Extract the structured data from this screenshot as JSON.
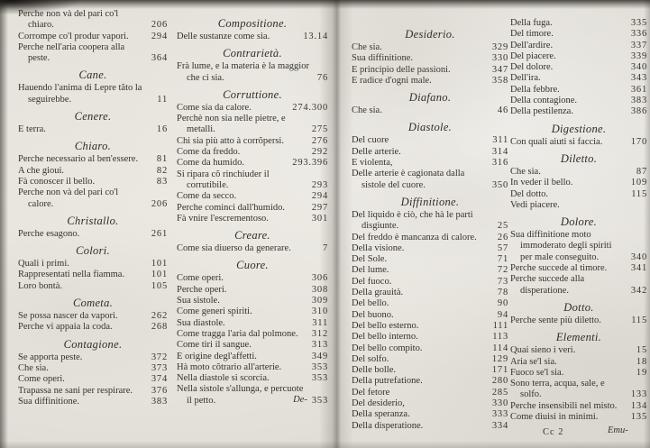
{
  "document": {
    "kind": "printed-book-index-spread",
    "language": "Italian",
    "colors": {
      "paper": "#e5e2db",
      "ink": "#35312a",
      "scan_edge": "#26231e"
    },
    "pages": [
      {
        "side": "left",
        "catchword": "De-",
        "columns": [
          {
            "blocks": [
              {
                "heading": null,
                "entries": [
                  {
                    "label": "Perche non và del pari co'l chiaro.",
                    "page": "206"
                  },
                  {
                    "label": "Corrompe co'l produr vapori.",
                    "page": "294"
                  },
                  {
                    "label": "Perche nell'aria coopera alla peste.",
                    "page": "364"
                  }
                ]
              },
              {
                "heading": "Cane.",
                "entries": [
                  {
                    "label": "Hauendo l'anima di Lepre tãto la seguirebbe.",
                    "page": "11"
                  }
                ]
              },
              {
                "heading": "Cenere.",
                "entries": [
                  {
                    "label": "E terra.",
                    "page": "16"
                  }
                ]
              },
              {
                "heading": "Chiaro.",
                "entries": [
                  {
                    "label": "Perche necessario al ben'essere.",
                    "page": "81"
                  },
                  {
                    "label": "A che gioui.",
                    "page": "82"
                  },
                  {
                    "label": "Fà conoscer il bello.",
                    "page": "83"
                  },
                  {
                    "label": "Perche non và del pari co'l calore.",
                    "page": "206"
                  }
                ]
              },
              {
                "heading": "Christallo.",
                "entries": [
                  {
                    "label": "Perche esagono.",
                    "page": "261"
                  }
                ]
              },
              {
                "heading": "Colori.",
                "entries": [
                  {
                    "label": "Quali i primi.",
                    "page": "101"
                  },
                  {
                    "label": "Rappresentati nella fiamma.",
                    "page": "101"
                  },
                  {
                    "label": "Loro bontà.",
                    "page": "105"
                  }
                ]
              },
              {
                "heading": "Cometa.",
                "entries": [
                  {
                    "label": "Se possa nascer da vapori.",
                    "page": "262"
                  },
                  {
                    "label": "Perche vi appaia la coda.",
                    "page": "268"
                  }
                ]
              },
              {
                "heading": "Contagione.",
                "entries": [
                  {
                    "label": "Se apporta peste.",
                    "page": "372"
                  },
                  {
                    "label": "Che sia.",
                    "page": "373"
                  },
                  {
                    "label": "Come operi.",
                    "page": "374"
                  },
                  {
                    "label": "Trapassa ne sani per respirare.",
                    "page": "376"
                  },
                  {
                    "label": "Sua diffinitione.",
                    "page": "383"
                  }
                ]
              }
            ]
          },
          {
            "blocks": [
              {
                "heading": "Compositione.",
                "entries": [
                  {
                    "label": "Delle sustanze come sia.",
                    "page": "13.14"
                  }
                ]
              },
              {
                "heading": "Contrarietà.",
                "entries": [
                  {
                    "label": "Frà lume, e la materia è la maggior che ci sia.",
                    "page": "76"
                  }
                ]
              },
              {
                "heading": "Corruttione.",
                "entries": [
                  {
                    "label": "Come sia da calore.",
                    "page": "274.300"
                  },
                  {
                    "label": "Perchè non sia nelle pietre, e metalli.",
                    "page": "275"
                  },
                  {
                    "label": "Chi sia più atto à corrõpersi.",
                    "page": "276"
                  },
                  {
                    "label": "Come da freddo.",
                    "page": "292"
                  },
                  {
                    "label": "Come da humido.",
                    "page": "293.396"
                  },
                  {
                    "label": "Si ripara cõ rinchiuder il corrutibile.",
                    "page": "293"
                  },
                  {
                    "label": "Come da secco.",
                    "page": "294"
                  },
                  {
                    "label": "Perche cominci dall'humido.",
                    "page": "297"
                  },
                  {
                    "label": "Fà vnire l'escrementoso.",
                    "page": "301"
                  }
                ]
              },
              {
                "heading": "Creare.",
                "entries": [
                  {
                    "label": "Come sia diuerso da generare.",
                    "page": "7"
                  }
                ]
              },
              {
                "heading": "Cuore.",
                "entries": [
                  {
                    "label": "Come operi.",
                    "page": "306"
                  },
                  {
                    "label": "Perche operi.",
                    "page": "308"
                  },
                  {
                    "label": "Sua sistole.",
                    "page": "309"
                  },
                  {
                    "label": "Come generi spiriti.",
                    "page": "310"
                  },
                  {
                    "label": "Sua diastole.",
                    "page": "311"
                  },
                  {
                    "label": "Come tragga l'aria dal polmone.",
                    "page": "312"
                  },
                  {
                    "label": "Come tiri il sangue.",
                    "page": "313"
                  },
                  {
                    "label": "E origine degl'affetti.",
                    "page": "349"
                  },
                  {
                    "label": "Hà moto cõtrario all'arterie.",
                    "page": "353"
                  },
                  {
                    "label": "Nella diastole si scorcia.",
                    "page": "353"
                  },
                  {
                    "label": "Nella sistole s'allunga, e percuote il petto.",
                    "page": "353"
                  }
                ]
              }
            ]
          }
        ]
      },
      {
        "side": "right",
        "signature": "Cc 2",
        "catchword": "Emu-",
        "columns": [
          {
            "blocks": [
              {
                "heading": "Desiderio.",
                "entries": [
                  {
                    "label": "Che sia.",
                    "page": "329"
                  },
                  {
                    "label": "Sua diffinitione.",
                    "page": "330"
                  },
                  {
                    "label": "E principio delle passioni.",
                    "page": "347"
                  },
                  {
                    "label": "E radice d'ogni male.",
                    "page": "358"
                  }
                ]
              },
              {
                "heading": "Diafano.",
                "entries": [
                  {
                    "label": "Che sia.",
                    "page": "46"
                  }
                ]
              },
              {
                "heading": "Diastole.",
                "entries": [
                  {
                    "label": "Del cuore",
                    "page": "311"
                  },
                  {
                    "label": "Delle arterie.",
                    "page": "314"
                  },
                  {
                    "label": "E violenta,",
                    "page": "316"
                  },
                  {
                    "label": "Delle arterie è cagionata dalla sistole del cuore.",
                    "page": "350"
                  }
                ]
              },
              {
                "heading": "Diffinitione.",
                "entries": [
                  {
                    "label": "Del liquido è ciò, che hà le parti disgiunte.",
                    "page": "25"
                  },
                  {
                    "label": "Del freddo è mancanza di calore.",
                    "page": "26"
                  },
                  {
                    "label": "Della visione.",
                    "page": "57"
                  },
                  {
                    "label": "Del Sole.",
                    "page": "71"
                  },
                  {
                    "label": "Del lume.",
                    "page": "72"
                  },
                  {
                    "label": "Del fuoco.",
                    "page": "73"
                  },
                  {
                    "label": "Della grauità.",
                    "page": "78"
                  },
                  {
                    "label": "Del bello.",
                    "page": "90"
                  },
                  {
                    "label": "Del buono.",
                    "page": "94"
                  },
                  {
                    "label": "Del bello esterno.",
                    "page": "111"
                  },
                  {
                    "label": "Del bello interno.",
                    "page": "113"
                  },
                  {
                    "label": "Del bello compito.",
                    "page": "114"
                  },
                  {
                    "label": "Del solfo.",
                    "page": "129"
                  },
                  {
                    "label": "Delle bolle.",
                    "page": "171"
                  },
                  {
                    "label": "Della putrefatione.",
                    "page": "280"
                  },
                  {
                    "label": "Del fetore",
                    "page": "285"
                  },
                  {
                    "label": "Del desiderio,",
                    "page": "330"
                  },
                  {
                    "label": "Della speranza.",
                    "page": "333"
                  },
                  {
                    "label": "Della disperatione.",
                    "page": "334"
                  }
                ]
              }
            ]
          },
          {
            "blocks": [
              {
                "heading": null,
                "entries": [
                  {
                    "label": "Della fuga.",
                    "page": "335"
                  },
                  {
                    "label": "Del timore.",
                    "page": "336"
                  },
                  {
                    "label": "Dell'ardire.",
                    "page": "337"
                  },
                  {
                    "label": "Del piacere.",
                    "page": "339"
                  },
                  {
                    "label": "Del dolore.",
                    "page": "340"
                  },
                  {
                    "label": "Dell'ira.",
                    "page": "343"
                  },
                  {
                    "label": "Della febbre.",
                    "page": "361"
                  },
                  {
                    "label": "Della contagione.",
                    "page": "383"
                  },
                  {
                    "label": "Della pestilenza.",
                    "page": "386"
                  }
                ]
              },
              {
                "heading": "Digestione.",
                "entries": [
                  {
                    "label": "Con quali aiuti si faccia.",
                    "page": "170"
                  }
                ]
              },
              {
                "heading": "Diletto.",
                "entries": [
                  {
                    "label": "Che sia.",
                    "page": "87"
                  },
                  {
                    "label": "In veder il bello.",
                    "page": "109"
                  },
                  {
                    "label": "Del dotto.",
                    "page": "115"
                  },
                  {
                    "label": "Vedi piacere.",
                    "page": ""
                  }
                ]
              },
              {
                "heading": "Dolore.",
                "entries": [
                  {
                    "label": "Sua diffinitione moto immoderato degli spiriti per male conseguito.",
                    "page": "340"
                  },
                  {
                    "label": "Perche succede al timore.",
                    "page": "341"
                  },
                  {
                    "label": "Perche succede alla disperatione.",
                    "page": "342"
                  }
                ]
              },
              {
                "heading": "Dotto.",
                "entries": [
                  {
                    "label": "Perche sente più diletto.",
                    "page": "115"
                  }
                ]
              },
              {
                "heading": "Elementi.",
                "entries": [
                  {
                    "label": "Quai sieno i veri.",
                    "page": "15"
                  },
                  {
                    "label": "Aria se'l sia.",
                    "page": "18"
                  },
                  {
                    "label": "Fuoco se'l sia.",
                    "page": "19"
                  },
                  {
                    "label": "Sono terra, acqua, sale, e solfo.",
                    "page": "133"
                  },
                  {
                    "label": "Perche insensibili nel misto.",
                    "page": "134"
                  },
                  {
                    "label": "Come diuisi in minimi.",
                    "page": "135"
                  }
                ]
              }
            ]
          }
        ]
      }
    ]
  }
}
